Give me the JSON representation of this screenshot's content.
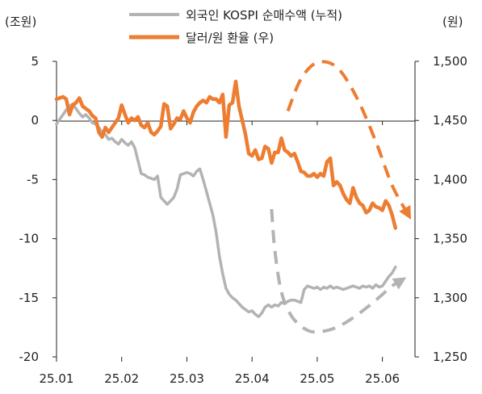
{
  "chart_data": {
    "type": "line",
    "left_unit": "(조원)",
    "right_unit": "(원)",
    "x_ticks": [
      "25.01",
      "25.02",
      "25.03",
      "25.04",
      "25.05",
      "25.06"
    ],
    "left_axis": {
      "ylim": [
        -20,
        5
      ],
      "ticks": [
        "5",
        "0",
        "-5",
        "-10",
        "-15",
        "-20"
      ],
      "tick_values": [
        5,
        0,
        -5,
        -10,
        -15,
        -20
      ]
    },
    "right_axis": {
      "ylim": [
        1250,
        1500
      ],
      "ticks": [
        "1,500",
        "1,450",
        "1,400",
        "1,350",
        "1,300",
        "1,250"
      ],
      "tick_values": [
        1500,
        1450,
        1400,
        1350,
        1300,
        1250
      ]
    },
    "grid": false,
    "legend_position": "top-center",
    "series": [
      {
        "name": "외국인 KOSPI 순매수액 (누적)",
        "axis": "left",
        "color": "#b3b3b3",
        "x": [
          0,
          0.05,
          0.1,
          0.15,
          0.2,
          0.25,
          0.3,
          0.35,
          0.4,
          0.45,
          0.5,
          0.55,
          0.6,
          0.65,
          0.7,
          0.75,
          0.8,
          0.85,
          0.9,
          0.95,
          1.0,
          1.05,
          1.1,
          1.15,
          1.2,
          1.25,
          1.3,
          1.35,
          1.4,
          1.45,
          1.5,
          1.55,
          1.6,
          1.65,
          1.7,
          1.75,
          1.8,
          1.85,
          1.9,
          1.95,
          2.0,
          2.05,
          2.1,
          2.15,
          2.2,
          2.25,
          2.3,
          2.35,
          2.4,
          2.45,
          2.5,
          2.55,
          2.6,
          2.65,
          2.7,
          2.75,
          2.8,
          2.85,
          2.9,
          2.95,
          3.0,
          3.05,
          3.1,
          3.15,
          3.2,
          3.25,
          3.3,
          3.35,
          3.4,
          3.45,
          3.5,
          3.55,
          3.6,
          3.65,
          3.7,
          3.75,
          3.8,
          3.85,
          3.9,
          3.95,
          4.0,
          4.05,
          4.1,
          4.15,
          4.2,
          4.25,
          4.3,
          4.35,
          4.4,
          4.45,
          4.5,
          4.55,
          4.6,
          4.65,
          4.7,
          4.75,
          4.8,
          4.85,
          4.9,
          4.95,
          5.0,
          5.05,
          5.1,
          5.15,
          5.2
        ],
        "values": [
          -0.3,
          0.1,
          0.5,
          0.9,
          1.2,
          1.4,
          1.0,
          0.6,
          0.3,
          0.5,
          0.2,
          -0.2,
          -0.3,
          -0.6,
          -1.0,
          -1.2,
          -1.6,
          -1.5,
          -1.8,
          -2.0,
          -1.6,
          -1.9,
          -2.1,
          -1.8,
          -2.3,
          -3.4,
          -4.5,
          -4.6,
          -4.8,
          -4.9,
          -5.0,
          -4.7,
          -6.5,
          -6.8,
          -7.1,
          -6.8,
          -6.5,
          -5.8,
          -4.6,
          -4.5,
          -4.4,
          -4.5,
          -4.7,
          -4.3,
          -4.1,
          -5.0,
          -6.0,
          -7.0,
          -8.0,
          -9.5,
          -11.5,
          -13.0,
          -14.2,
          -14.7,
          -15.0,
          -15.2,
          -15.5,
          -15.8,
          -16.0,
          -16.2,
          -16.1,
          -16.4,
          -16.6,
          -16.3,
          -15.8,
          -15.6,
          -15.8,
          -15.6,
          -15.7,
          -15.4,
          -15.5,
          -15.3,
          -15.2,
          -15.2,
          -15.3,
          -15.4,
          -14.3,
          -14.0,
          -14.1,
          -14.2,
          -14.1,
          -14.3,
          -14.1,
          -14.2,
          -14.0,
          -14.2,
          -14.1,
          -14.2,
          -14.3,
          -14.2,
          -14.1,
          -14.0,
          -14.1,
          -14.2,
          -14.0,
          -14.1,
          -14.0,
          -14.2,
          -13.9,
          -14.1,
          -14.0,
          -13.6,
          -13.2,
          -12.9,
          -12.4
        ]
      },
      {
        "name": "달러/원 환율 (우)",
        "axis": "right",
        "color": "#ed7d31",
        "x": [
          0,
          0.05,
          0.1,
          0.15,
          0.2,
          0.25,
          0.3,
          0.35,
          0.4,
          0.45,
          0.5,
          0.55,
          0.6,
          0.65,
          0.7,
          0.75,
          0.8,
          0.85,
          0.9,
          0.95,
          1.0,
          1.05,
          1.1,
          1.15,
          1.2,
          1.25,
          1.3,
          1.35,
          1.4,
          1.45,
          1.5,
          1.55,
          1.6,
          1.65,
          1.7,
          1.75,
          1.8,
          1.85,
          1.9,
          1.95,
          2.0,
          2.05,
          2.1,
          2.15,
          2.2,
          2.25,
          2.3,
          2.35,
          2.4,
          2.45,
          2.5,
          2.55,
          2.6,
          2.65,
          2.7,
          2.75,
          2.8,
          2.85,
          2.9,
          2.95,
          3.0,
          3.05,
          3.1,
          3.15,
          3.2,
          3.25,
          3.3,
          3.35,
          3.4,
          3.45,
          3.5,
          3.55,
          3.6,
          3.65,
          3.7,
          3.75,
          3.8,
          3.85,
          3.9,
          3.95,
          4.0,
          4.05,
          4.1,
          4.15,
          4.2,
          4.25,
          4.3,
          4.35,
          4.4,
          4.45,
          4.5,
          4.55,
          4.6,
          4.65,
          4.7,
          4.75,
          4.8,
          4.85,
          4.9,
          4.95,
          5.0,
          5.05,
          5.1,
          5.15,
          5.2
        ],
        "values": [
          1468,
          1469,
          1470,
          1468,
          1455,
          1463,
          1465,
          1469,
          1462,
          1460,
          1458,
          1454,
          1452,
          1440,
          1436,
          1444,
          1440,
          1444,
          1448,
          1452,
          1463,
          1455,
          1448,
          1452,
          1450,
          1453,
          1446,
          1444,
          1448,
          1440,
          1438,
          1441,
          1445,
          1464,
          1462,
          1443,
          1447,
          1452,
          1451,
          1458,
          1452,
          1448,
          1457,
          1462,
          1465,
          1467,
          1465,
          1470,
          1468,
          1468,
          1465,
          1472,
          1436,
          1463,
          1465,
          1483,
          1462,
          1450,
          1438,
          1422,
          1420,
          1425,
          1417,
          1418,
          1428,
          1426,
          1414,
          1423,
          1423,
          1435,
          1425,
          1423,
          1420,
          1422,
          1415,
          1407,
          1406,
          1403,
          1403,
          1405,
          1402,
          1405,
          1403,
          1415,
          1418,
          1395,
          1398,
          1395,
          1388,
          1383,
          1380,
          1393,
          1385,
          1380,
          1378,
          1372,
          1374,
          1380,
          1377,
          1376,
          1374,
          1382,
          1378,
          1370,
          1359
        ]
      }
    ],
    "trend_arrows": [
      {
        "name": "fx-trend-arrow",
        "color": "#ed7d31",
        "axis": "right",
        "x": [
          3.55,
          3.75,
          4.0,
          4.3,
          4.6,
          4.9,
          5.15,
          5.4
        ],
        "values": [
          1458,
          1485,
          1499,
          1495,
          1470,
          1432,
          1395,
          1370
        ]
      },
      {
        "name": "foreign-flow-trend-arrow",
        "color": "#b3b3b3",
        "axis": "left",
        "x": [
          3.3,
          3.35,
          3.45,
          3.6,
          3.8,
          4.0,
          4.3,
          4.6,
          4.9,
          5.15,
          5.3
        ],
        "values": [
          -7.5,
          -11.0,
          -14.5,
          -16.5,
          -17.6,
          -17.9,
          -17.5,
          -16.5,
          -15.2,
          -14.0,
          -13.5
        ]
      }
    ]
  }
}
